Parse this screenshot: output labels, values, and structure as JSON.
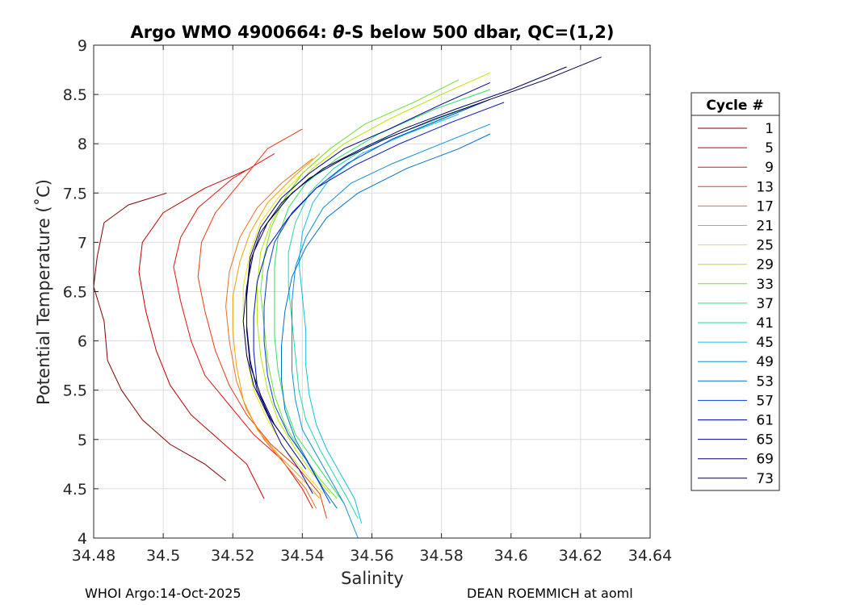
{
  "chart_data": {
    "type": "line",
    "title_prefix": "Argo WMO 4900664: ",
    "title_theta": "θ",
    "title_suffix": "-S below 500 dbar,  QC=(1,2)",
    "xlabel": "Salinity",
    "ylabel": "Potential Temperature (˚C)",
    "xlim": [
      34.48,
      34.64
    ],
    "ylim": [
      4,
      9
    ],
    "xticks": [
      "34.48",
      "34.5",
      "34.52",
      "34.54",
      "34.56",
      "34.58",
      "34.6",
      "34.62",
      "34.64"
    ],
    "yticks": [
      "4",
      "4.5",
      "5",
      "5.5",
      "6",
      "6.5",
      "7",
      "7.5",
      "8",
      "8.5",
      "9"
    ],
    "grid": true,
    "legend_position": "right",
    "legend_title": "Cycle #",
    "series": [
      {
        "name": "1",
        "color": "#800000",
        "points": [
          [
            34.501,
            7.5
          ],
          [
            34.49,
            7.38
          ],
          [
            34.483,
            7.2
          ],
          [
            34.481,
            6.85
          ],
          [
            34.48,
            6.55
          ],
          [
            34.483,
            6.2
          ],
          [
            34.484,
            5.8
          ],
          [
            34.488,
            5.5
          ],
          [
            34.494,
            5.2
          ],
          [
            34.502,
            4.95
          ],
          [
            34.512,
            4.75
          ],
          [
            34.518,
            4.58
          ]
        ]
      },
      {
        "name": "5",
        "color": "#c00000",
        "points": [
          [
            34.525,
            7.75
          ],
          [
            34.512,
            7.55
          ],
          [
            34.5,
            7.3
          ],
          [
            34.494,
            7.0
          ],
          [
            34.493,
            6.7
          ],
          [
            34.495,
            6.3
          ],
          [
            34.498,
            5.9
          ],
          [
            34.502,
            5.55
          ],
          [
            34.508,
            5.25
          ],
          [
            34.516,
            5.0
          ],
          [
            34.524,
            4.75
          ],
          [
            34.529,
            4.4
          ]
        ]
      },
      {
        "name": "9",
        "color": "#e41010",
        "points": [
          [
            34.532,
            7.9
          ],
          [
            34.52,
            7.65
          ],
          [
            34.51,
            7.35
          ],
          [
            34.505,
            7.05
          ],
          [
            34.503,
            6.75
          ],
          [
            34.505,
            6.4
          ],
          [
            34.508,
            6.0
          ],
          [
            34.512,
            5.65
          ],
          [
            34.519,
            5.35
          ],
          [
            34.526,
            5.05
          ],
          [
            34.534,
            4.8
          ],
          [
            34.54,
            4.5
          ],
          [
            34.543,
            4.3
          ]
        ]
      },
      {
        "name": "13",
        "color": "#ec3a14",
        "points": [
          [
            34.54,
            8.15
          ],
          [
            34.53,
            7.95
          ],
          [
            34.522,
            7.6
          ],
          [
            34.515,
            7.3
          ],
          [
            34.511,
            7.0
          ],
          [
            34.51,
            6.65
          ],
          [
            34.512,
            6.3
          ],
          [
            34.515,
            5.9
          ],
          [
            34.519,
            5.55
          ],
          [
            34.524,
            5.25
          ],
          [
            34.531,
            4.95
          ],
          [
            34.539,
            4.7
          ],
          [
            34.545,
            4.45
          ],
          [
            34.547,
            4.2
          ]
        ]
      },
      {
        "name": "17",
        "color": "#ec7020",
        "points": [
          [
            34.543,
            7.85
          ],
          [
            34.534,
            7.6
          ],
          [
            34.527,
            7.35
          ],
          [
            34.522,
            7.05
          ],
          [
            34.519,
            6.7
          ],
          [
            34.518,
            6.35
          ],
          [
            34.519,
            6.0
          ],
          [
            34.521,
            5.6
          ],
          [
            34.524,
            5.3
          ],
          [
            34.529,
            5.0
          ],
          [
            34.535,
            4.75
          ],
          [
            34.541,
            4.5
          ],
          [
            34.544,
            4.3
          ]
        ]
      },
      {
        "name": "21",
        "color": "#f0a000",
        "points": [
          [
            34.545,
            7.9
          ],
          [
            34.537,
            7.65
          ],
          [
            34.53,
            7.4
          ],
          [
            34.525,
            7.1
          ],
          [
            34.522,
            6.8
          ],
          [
            34.52,
            6.45
          ],
          [
            34.52,
            6.1
          ],
          [
            34.521,
            5.75
          ],
          [
            34.523,
            5.4
          ],
          [
            34.527,
            5.1
          ],
          [
            34.533,
            4.85
          ],
          [
            34.54,
            4.6
          ],
          [
            34.545,
            4.4
          ]
        ]
      },
      {
        "name": "25",
        "color": "#f0e000",
        "points": [
          [
            34.548,
            7.95
          ],
          [
            34.54,
            7.7
          ],
          [
            34.533,
            7.45
          ],
          [
            34.528,
            7.2
          ],
          [
            34.525,
            6.9
          ],
          [
            34.523,
            6.55
          ],
          [
            34.523,
            6.2
          ],
          [
            34.524,
            5.85
          ],
          [
            34.526,
            5.5
          ],
          [
            34.53,
            5.2
          ],
          [
            34.535,
            4.9
          ],
          [
            34.541,
            4.65
          ],
          [
            34.546,
            4.45
          ]
        ]
      },
      {
        "name": "29",
        "color": "#b8e600",
        "points": [
          [
            34.594,
            8.72
          ],
          [
            34.58,
            8.5
          ],
          [
            34.565,
            8.25
          ],
          [
            34.552,
            8.0
          ],
          [
            34.543,
            7.75
          ],
          [
            34.536,
            7.5
          ],
          [
            34.531,
            7.2
          ],
          [
            34.528,
            6.9
          ],
          [
            34.527,
            6.55
          ],
          [
            34.527,
            6.2
          ],
          [
            34.528,
            5.85
          ],
          [
            34.53,
            5.5
          ],
          [
            34.533,
            5.2
          ],
          [
            34.538,
            4.9
          ],
          [
            34.543,
            4.65
          ],
          [
            34.548,
            4.45
          ]
        ]
      },
      {
        "name": "33",
        "color": "#70e030",
        "points": [
          [
            34.585,
            8.65
          ],
          [
            34.572,
            8.42
          ],
          [
            34.558,
            8.2
          ],
          [
            34.548,
            7.95
          ],
          [
            34.54,
            7.7
          ],
          [
            34.535,
            7.45
          ],
          [
            34.531,
            7.15
          ],
          [
            34.529,
            6.85
          ],
          [
            34.528,
            6.5
          ],
          [
            34.529,
            6.15
          ],
          [
            34.53,
            5.8
          ],
          [
            34.532,
            5.45
          ],
          [
            34.535,
            5.15
          ],
          [
            34.54,
            4.85
          ],
          [
            34.545,
            4.6
          ],
          [
            34.55,
            4.4
          ]
        ]
      },
      {
        "name": "37",
        "color": "#30e060",
        "points": [
          [
            34.594,
            8.55
          ],
          [
            34.578,
            8.35
          ],
          [
            34.562,
            8.1
          ],
          [
            34.55,
            7.85
          ],
          [
            34.541,
            7.6
          ],
          [
            34.536,
            7.35
          ],
          [
            34.533,
            7.05
          ],
          [
            34.532,
            6.75
          ],
          [
            34.532,
            6.4
          ],
          [
            34.532,
            6.05
          ],
          [
            34.533,
            5.7
          ],
          [
            34.535,
            5.35
          ],
          [
            34.538,
            5.05
          ],
          [
            34.543,
            4.8
          ],
          [
            34.548,
            4.55
          ],
          [
            34.552,
            4.35
          ]
        ]
      },
      {
        "name": "41",
        "color": "#20d8a8",
        "points": [
          [
            34.59,
            8.4
          ],
          [
            34.575,
            8.2
          ],
          [
            34.56,
            8.0
          ],
          [
            34.549,
            7.75
          ],
          [
            34.542,
            7.5
          ],
          [
            34.538,
            7.2
          ],
          [
            34.536,
            6.9
          ],
          [
            34.536,
            6.55
          ],
          [
            34.537,
            6.2
          ],
          [
            34.538,
            5.85
          ],
          [
            34.539,
            5.5
          ],
          [
            34.541,
            5.2
          ],
          [
            34.545,
            4.9
          ],
          [
            34.549,
            4.65
          ],
          [
            34.553,
            4.4
          ],
          [
            34.556,
            4.2
          ]
        ]
      },
      {
        "name": "45",
        "color": "#10c0e0",
        "points": [
          [
            34.585,
            8.3
          ],
          [
            34.57,
            8.1
          ],
          [
            34.557,
            7.9
          ],
          [
            34.548,
            7.65
          ],
          [
            34.543,
            7.4
          ],
          [
            34.54,
            7.1
          ],
          [
            34.539,
            6.8
          ],
          [
            34.54,
            6.45
          ],
          [
            34.541,
            6.1
          ],
          [
            34.541,
            5.75
          ],
          [
            34.542,
            5.45
          ],
          [
            34.544,
            5.15
          ],
          [
            34.547,
            4.9
          ],
          [
            34.551,
            4.65
          ],
          [
            34.555,
            4.4
          ],
          [
            34.557,
            4.15
          ]
        ]
      },
      {
        "name": "49",
        "color": "#1090d8",
        "points": [
          [
            34.594,
            8.2
          ],
          [
            34.58,
            8.0
          ],
          [
            34.566,
            7.8
          ],
          [
            34.554,
            7.6
          ],
          [
            34.546,
            7.35
          ],
          [
            34.541,
            7.05
          ],
          [
            34.538,
            6.75
          ],
          [
            34.537,
            6.4
          ],
          [
            34.537,
            6.05
          ],
          [
            34.537,
            5.7
          ],
          [
            34.538,
            5.4
          ],
          [
            34.54,
            5.1
          ],
          [
            34.544,
            4.85
          ],
          [
            34.548,
            4.6
          ],
          [
            34.552,
            4.35
          ],
          [
            34.556,
            4.0
          ]
        ]
      },
      {
        "name": "53",
        "color": "#0070d0",
        "points": [
          [
            34.594,
            8.1
          ],
          [
            34.585,
            7.95
          ],
          [
            34.57,
            7.75
          ],
          [
            34.556,
            7.5
          ],
          [
            34.547,
            7.25
          ],
          [
            34.541,
            6.95
          ],
          [
            34.537,
            6.65
          ],
          [
            34.535,
            6.3
          ],
          [
            34.534,
            5.95
          ],
          [
            34.534,
            5.6
          ],
          [
            34.535,
            5.3
          ],
          [
            34.538,
            5.0
          ],
          [
            34.542,
            4.75
          ],
          [
            34.546,
            4.5
          ],
          [
            34.55,
            4.3
          ]
        ]
      },
      {
        "name": "57",
        "color": "#0040d8",
        "points": [
          [
            34.594,
            8.45
          ],
          [
            34.58,
            8.25
          ],
          [
            34.566,
            8.05
          ],
          [
            34.553,
            7.8
          ],
          [
            34.544,
            7.55
          ],
          [
            34.537,
            7.3
          ],
          [
            34.532,
            7.0
          ],
          [
            34.53,
            6.7
          ],
          [
            34.529,
            6.35
          ],
          [
            34.529,
            6.0
          ],
          [
            34.53,
            5.65
          ],
          [
            34.532,
            5.35
          ],
          [
            34.536,
            5.05
          ],
          [
            34.541,
            4.8
          ],
          [
            34.545,
            4.55
          ],
          [
            34.548,
            4.35
          ]
        ]
      },
      {
        "name": "61",
        "color": "#0010c0",
        "points": [
          [
            34.598,
            8.42
          ],
          [
            34.583,
            8.22
          ],
          [
            34.568,
            8.0
          ],
          [
            34.555,
            7.78
          ],
          [
            34.544,
            7.55
          ],
          [
            34.536,
            7.25
          ],
          [
            34.53,
            6.95
          ],
          [
            34.527,
            6.6
          ],
          [
            34.526,
            6.25
          ],
          [
            34.526,
            5.9
          ],
          [
            34.527,
            5.55
          ],
          [
            34.53,
            5.25
          ],
          [
            34.534,
            4.95
          ],
          [
            34.539,
            4.7
          ],
          [
            34.543,
            4.45
          ]
        ]
      },
      {
        "name": "65",
        "color": "#00008c",
        "points": [
          [
            34.594,
            8.62
          ],
          [
            34.58,
            8.4
          ],
          [
            34.565,
            8.15
          ],
          [
            34.552,
            7.95
          ],
          [
            34.542,
            7.7
          ],
          [
            34.534,
            7.45
          ],
          [
            34.528,
            7.15
          ],
          [
            34.525,
            6.85
          ],
          [
            34.524,
            6.5
          ],
          [
            34.524,
            6.15
          ],
          [
            34.525,
            5.8
          ],
          [
            34.527,
            5.5
          ],
          [
            34.531,
            5.2
          ],
          [
            34.536,
            4.95
          ],
          [
            34.541,
            4.7
          ]
        ]
      },
      {
        "name": "69",
        "color": "#000064",
        "points": [
          [
            34.616,
            8.78
          ],
          [
            34.6,
            8.55
          ],
          [
            34.584,
            8.35
          ],
          [
            34.569,
            8.15
          ],
          [
            34.557,
            7.95
          ],
          [
            34.546,
            7.75
          ],
          [
            34.537,
            7.5
          ],
          [
            34.53,
            7.2
          ],
          [
            34.526,
            6.9
          ],
          [
            34.524,
            6.55
          ],
          [
            34.523,
            6.2
          ],
          [
            34.524,
            5.85
          ],
          [
            34.526,
            5.55
          ],
          [
            34.53,
            5.25
          ],
          [
            34.535,
            5.0
          ]
        ]
      },
      {
        "name": "73",
        "color": "#00003c",
        "points": [
          [
            34.626,
            8.88
          ],
          [
            34.61,
            8.65
          ],
          [
            34.594,
            8.45
          ],
          [
            34.578,
            8.25
          ],
          [
            34.564,
            8.05
          ],
          [
            34.552,
            7.85
          ],
          [
            34.542,
            7.65
          ],
          [
            34.534,
            7.4
          ],
          [
            34.528,
            7.1
          ],
          [
            34.525,
            6.8
          ],
          [
            34.524,
            6.45
          ],
          [
            34.524,
            6.1
          ],
          [
            34.525,
            5.75
          ],
          [
            34.528,
            5.45
          ],
          [
            34.532,
            5.15
          ]
        ]
      }
    ]
  },
  "footer": {
    "left": "WHOI Argo:14-Oct-2025",
    "right": "DEAN ROEMMICH at aoml"
  }
}
